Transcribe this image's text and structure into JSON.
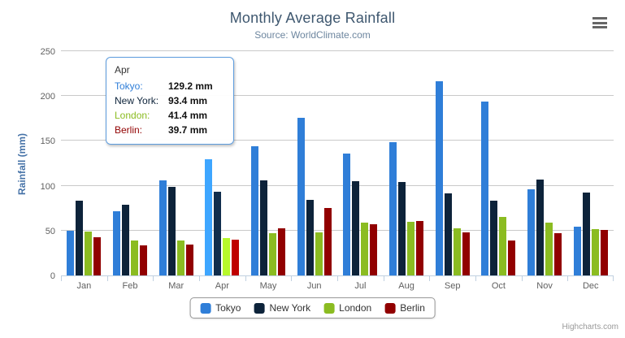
{
  "chart_data": {
    "type": "bar",
    "title": "Monthly Average Rainfall",
    "subtitle": "Source: WorldClimate.com",
    "xlabel": "",
    "ylabel": "Rainfall (mm)",
    "ylim": [
      0,
      250
    ],
    "yticks": [
      0,
      50,
      100,
      150,
      200,
      250
    ],
    "grid": true,
    "legend_position": "bottom",
    "categories": [
      "Jan",
      "Feb",
      "Mar",
      "Apr",
      "May",
      "Jun",
      "Jul",
      "Aug",
      "Sep",
      "Oct",
      "Nov",
      "Dec"
    ],
    "series": [
      {
        "name": "Tokyo",
        "color": "#2f7ed8",
        "values": [
          49.9,
          71.5,
          106.4,
          129.2,
          144.0,
          176.0,
          135.6,
          148.5,
          216.4,
          194.1,
          95.6,
          54.4
        ]
      },
      {
        "name": "New York",
        "color": "#0d233a",
        "values": [
          83.6,
          78.8,
          98.5,
          93.4,
          106.0,
          84.5,
          105.0,
          104.3,
          91.2,
          83.5,
          106.6,
          92.3
        ]
      },
      {
        "name": "London",
        "color": "#8bbc21",
        "values": [
          48.9,
          38.8,
          39.3,
          41.4,
          47.0,
          48.3,
          59.0,
          59.6,
          52.4,
          65.2,
          59.3,
          51.2
        ]
      },
      {
        "name": "Berlin",
        "color": "#910000",
        "values": [
          42.4,
          33.2,
          34.5,
          39.7,
          52.6,
          75.5,
          57.4,
          60.4,
          47.6,
          39.1,
          46.8,
          51.1
        ]
      }
    ]
  },
  "tooltip": {
    "category": "Apr",
    "rows": [
      {
        "label": "Tokyo:",
        "value": "129.2 mm"
      },
      {
        "label": "New York:",
        "value": "93.4 mm"
      },
      {
        "label": "London:",
        "value": "41.4 mm"
      },
      {
        "label": "Berlin:",
        "value": "39.7 mm"
      }
    ]
  },
  "credits": {
    "label": "Highcharts.com"
  },
  "ui_colors": {
    "title": "#3E576F",
    "subtitle": "#6D869F",
    "yaxis_title": "#4572A7",
    "axis_line": "#C0D0E0",
    "gridline": "#C9C9C9",
    "tooltip_border": "#5C9CDE"
  }
}
